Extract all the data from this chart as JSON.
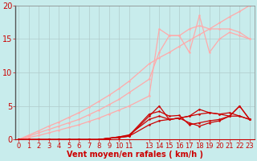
{
  "background_color": "#c8ecec",
  "grid_color": "#b0cccc",
  "xlabel": "Vent moyen/en rafales ( km/h )",
  "x_values": [
    0,
    1,
    2,
    3,
    4,
    5,
    6,
    7,
    8,
    9,
    10,
    11,
    13,
    14,
    15,
    16,
    17,
    18,
    19,
    20,
    21,
    22,
    23
  ],
  "light_series": [
    [
      0.0,
      0.3,
      0.6,
      1.0,
      1.4,
      1.8,
      2.2,
      2.7,
      3.2,
      3.8,
      4.4,
      5.0,
      6.5,
      16.5,
      15.5,
      15.5,
      13.0,
      18.5,
      13.0,
      15.0,
      16.0,
      15.5,
      15.0
    ],
    [
      0.0,
      0.5,
      1.0,
      1.5,
      2.0,
      2.5,
      3.0,
      3.7,
      4.4,
      5.2,
      6.0,
      7.0,
      9.0,
      13.0,
      15.5,
      15.5,
      16.5,
      17.0,
      16.5,
      16.5,
      16.5,
      16.0,
      15.0
    ],
    [
      0.0,
      0.65,
      1.3,
      2.0,
      2.6,
      3.3,
      4.0,
      4.8,
      5.7,
      6.6,
      7.6,
      8.7,
      11.3,
      12.2,
      13.0,
      13.9,
      14.8,
      15.65,
      16.5,
      17.4,
      18.3,
      19.1,
      20.0
    ]
  ],
  "dark_series": [
    [
      0,
      0,
      0,
      0,
      0,
      0,
      0,
      0,
      0,
      0.2,
      0.3,
      0.5,
      2.2,
      2.8,
      3.0,
      3.2,
      3.5,
      3.8,
      4.0,
      3.8,
      3.5,
      5.0,
      3.0
    ],
    [
      0,
      0,
      0,
      0,
      0,
      0,
      0,
      0,
      0,
      0.2,
      0.3,
      0.5,
      3.5,
      5.0,
      3.0,
      3.2,
      3.5,
      4.5,
      4.0,
      3.8,
      4.0,
      3.5,
      3.0
    ],
    [
      0,
      0,
      0,
      0,
      0,
      0,
      0,
      0,
      0,
      0.2,
      0.4,
      0.6,
      3.8,
      4.2,
      3.5,
      3.6,
      2.2,
      2.5,
      2.8,
      3.0,
      3.5,
      5.0,
      3.0
    ],
    [
      0,
      0,
      0,
      0,
      0,
      0,
      0,
      0,
      0,
      0.2,
      0.4,
      0.7,
      3.0,
      3.5,
      3.0,
      3.2,
      2.5,
      2.0,
      2.5,
      2.8,
      3.5,
      3.5,
      3.0
    ]
  ],
  "light_color": "#ffaaaa",
  "dark_color": "#cc0000",
  "ylim": [
    0,
    20
  ],
  "yticks": [
    0,
    5,
    10,
    15,
    20
  ],
  "xticks": [
    0,
    1,
    2,
    3,
    4,
    5,
    6,
    7,
    8,
    9,
    10,
    11,
    13,
    14,
    15,
    16,
    17,
    18,
    19,
    20,
    21,
    22,
    23
  ],
  "xlim": [
    -0.3,
    23.5
  ],
  "tick_color": "#cc0000",
  "tick_fontsize": 6,
  "xlabel_fontsize": 7
}
